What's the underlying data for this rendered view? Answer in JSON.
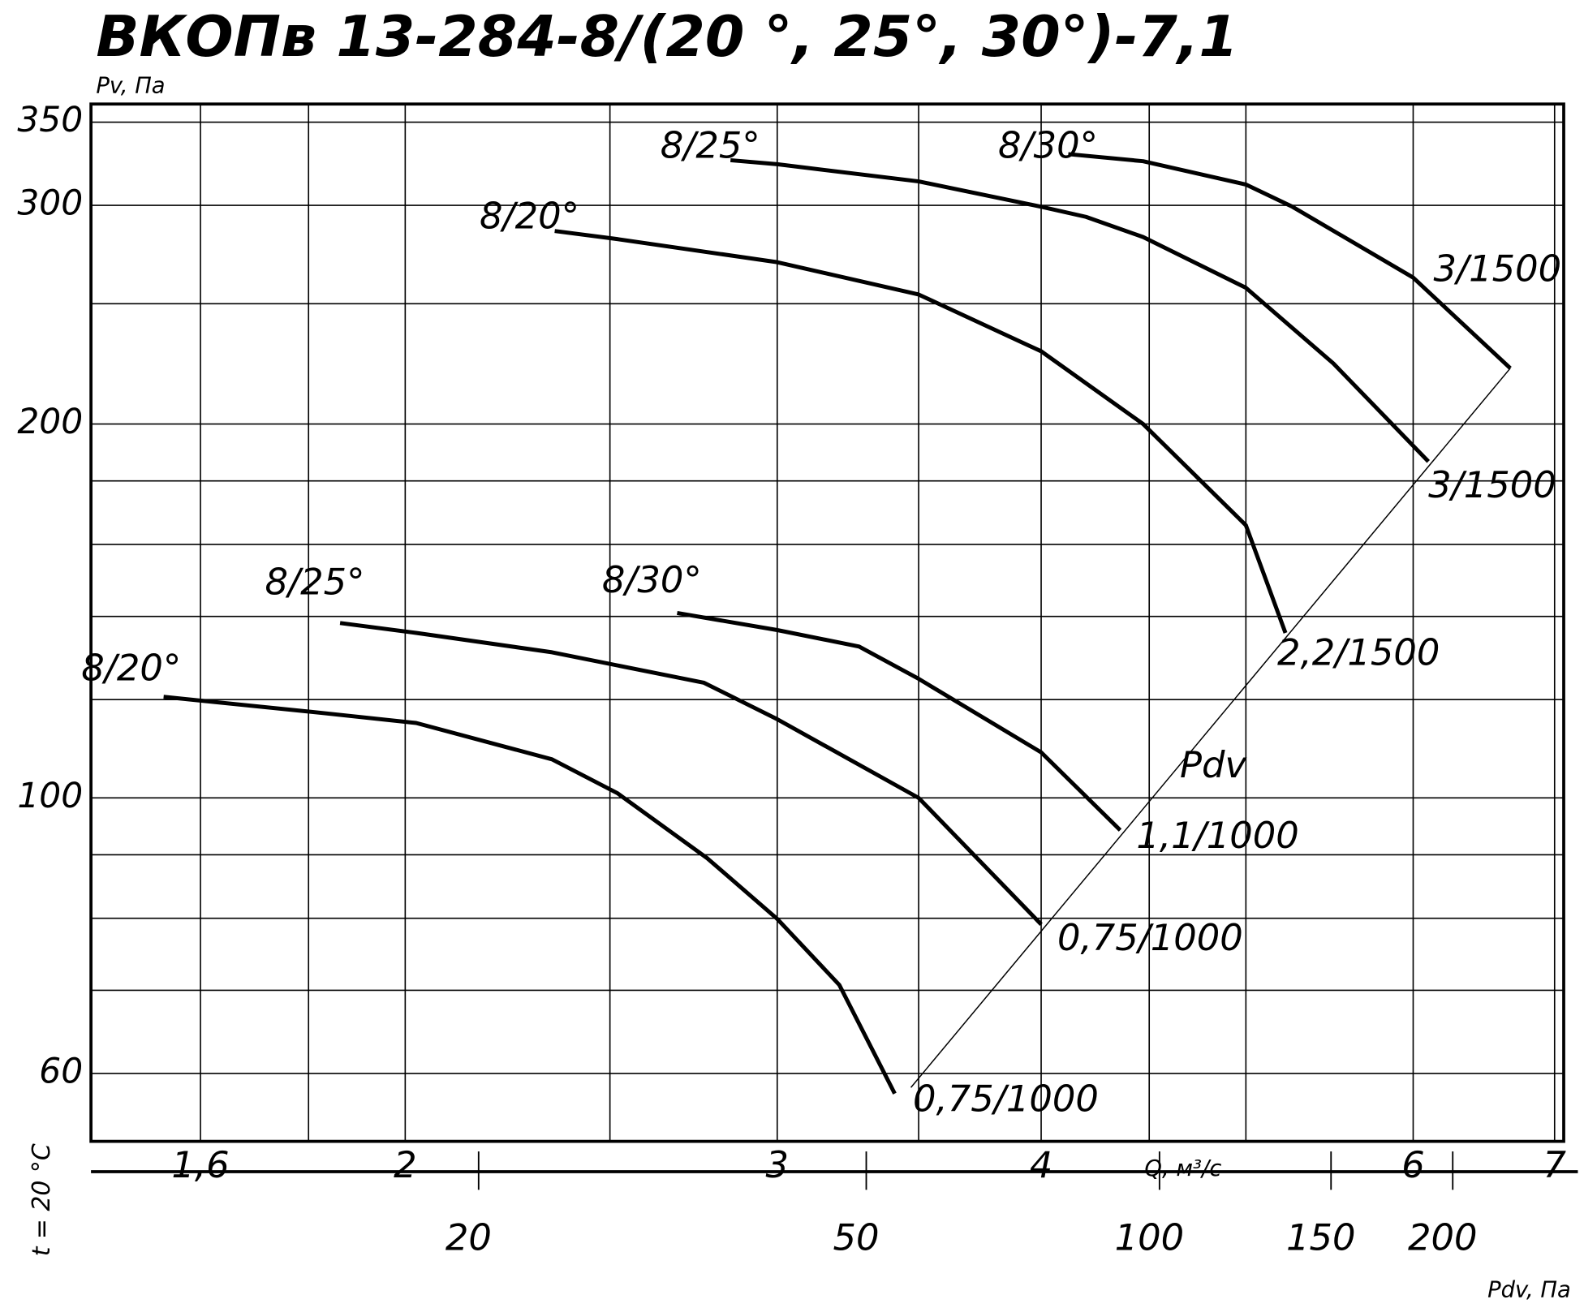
{
  "chart_data": {
    "type": "line",
    "title": "ВКОПв 13-284-8/(20 °, 25°, 30°)-7,1",
    "y_label": "Pv, Па",
    "x_label": "Q, м³/с",
    "x2_label": "Pdv, Па",
    "side_label": "t = 20 °C",
    "pdv_line_label": "Pdv",
    "log_x": true,
    "log_y": true,
    "grid": true,
    "color": "#000000",
    "xlim": [
      1.42,
      7.07
    ],
    "xticks": [
      {
        "value": 1.6,
        "label": "1,6"
      },
      2,
      3,
      4,
      6,
      7
    ],
    "xgrid": [
      1.6,
      1.8,
      2,
      2.5,
      3,
      3.5,
      4,
      4.5,
      5,
      6,
      7
    ],
    "ylim": [
      52.9,
      362
    ],
    "yticks": [
      60,
      100,
      200,
      300,
      350
    ],
    "ygrid": [
      60,
      70,
      80,
      90,
      100,
      120,
      140,
      160,
      180,
      200,
      250,
      300,
      350
    ],
    "x2lim": [
      8,
      260
    ],
    "x2ticks": [
      20,
      50,
      100,
      150,
      200
    ],
    "series": [
      {
        "name": "8/20°",
        "end_label": "0,75/1000",
        "x": [
          1.537,
          1.831,
          2.024,
          2.347,
          2.52,
          2.78,
          3.0,
          3.21,
          3.41
        ],
        "values": [
          120.6,
          117,
          114.9,
          107.4,
          100.9,
          89.4,
          79.9,
          70.7,
          57.8
        ]
      },
      {
        "name": "8/25°",
        "end_label": "0,75/1000",
        "x": [
          1.863,
          2.024,
          2.347,
          2.77,
          3.0,
          3.5,
          4.0
        ],
        "values": [
          138.3,
          135.8,
          131,
          123.8,
          115.7,
          100,
          79.1
        ]
      },
      {
        "name": "8/30°",
        "end_label": "1,1/1000",
        "x": [
          2.69,
          3.0,
          3.28,
          3.5,
          4.0,
          4.36
        ],
        "values": [
          140.9,
          136.5,
          132.4,
          124.7,
          108.8,
          94.2
        ]
      },
      {
        "name": "8/20°",
        "end_label": "2,2/1500",
        "x": [
          2.354,
          2.52,
          3.0,
          3.5,
          4.0,
          4.47,
          5.0,
          5.22
        ],
        "values": [
          286.1,
          281.8,
          270,
          254.3,
          228.9,
          200,
          165.8,
          135.8
        ]
      },
      {
        "name": "8/25°",
        "end_label": "3/1500",
        "x": [
          2.851,
          3.0,
          3.5,
          4.0,
          4.2,
          4.47,
          5.0,
          5.5,
          6.1
        ],
        "values": [
          326.2,
          323.8,
          313.6,
          299.2,
          293.7,
          282.9,
          257.5,
          223.8,
          186.6
        ]
      },
      {
        "name": "8/30°",
        "end_label": "3/1500",
        "x": [
          4.12,
          4.47,
          5.0,
          5.26,
          6.0,
          6.67
        ],
        "values": [
          329.9,
          325.6,
          311.8,
          299.2,
          262.4,
          221.8
        ]
      }
    ]
  }
}
